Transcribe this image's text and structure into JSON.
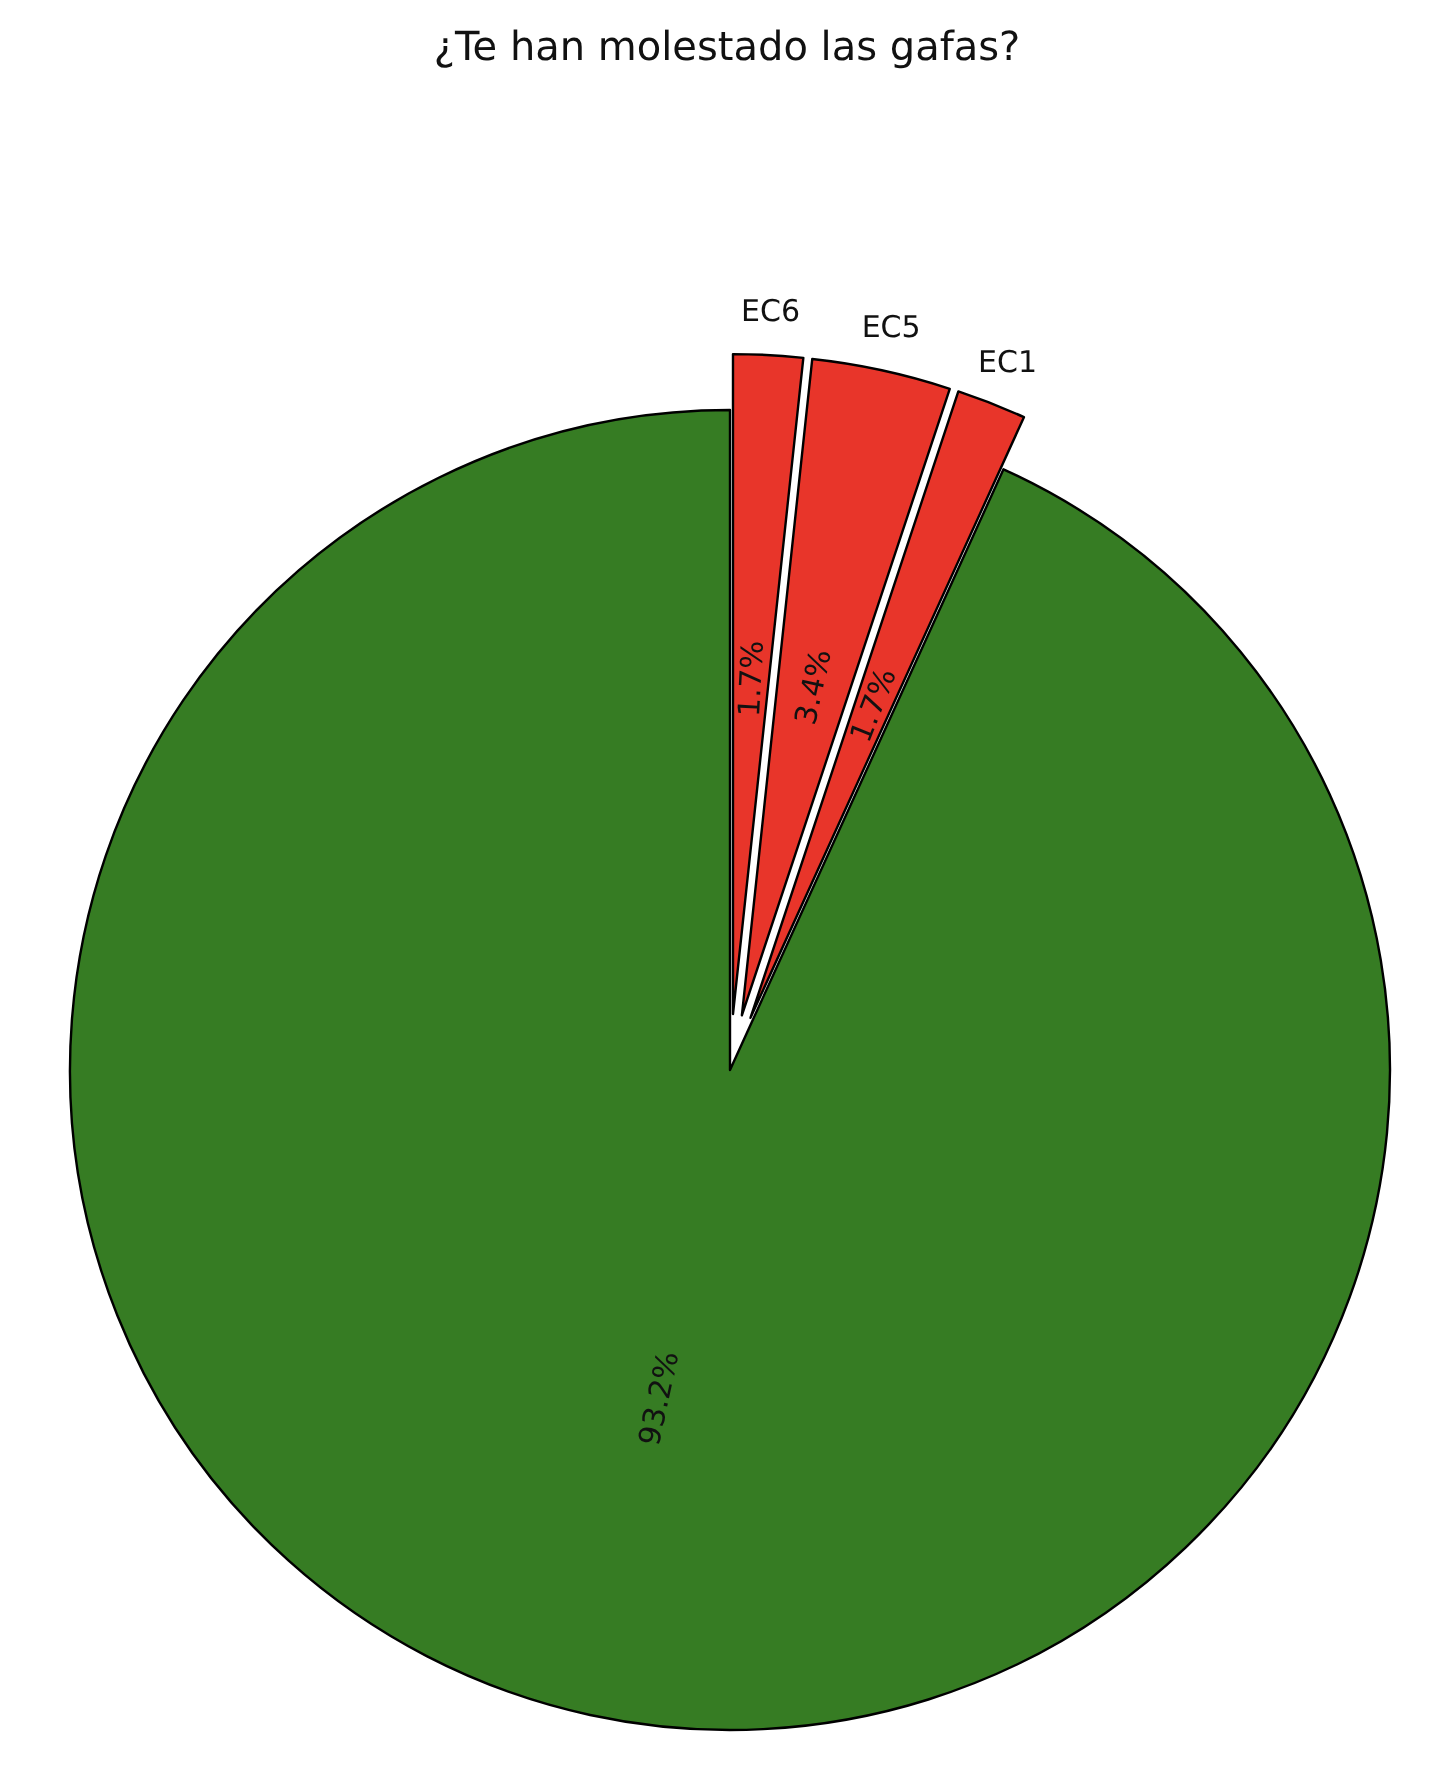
{
  "chart_data": {
    "type": "pie",
    "title": "¿Te han molestado las gafas?",
    "categories": [
      "EC6",
      "EC5",
      "EC1",
      null
    ],
    "values": [
      1.7,
      3.4,
      1.7,
      93.2
    ],
    "colors": [
      "#e8352a",
      "#e8352a",
      "#e8352a",
      "#367c23"
    ],
    "value_labels": [
      "1.7%",
      "3.4%",
      "1.7%",
      "93.2%"
    ]
  }
}
